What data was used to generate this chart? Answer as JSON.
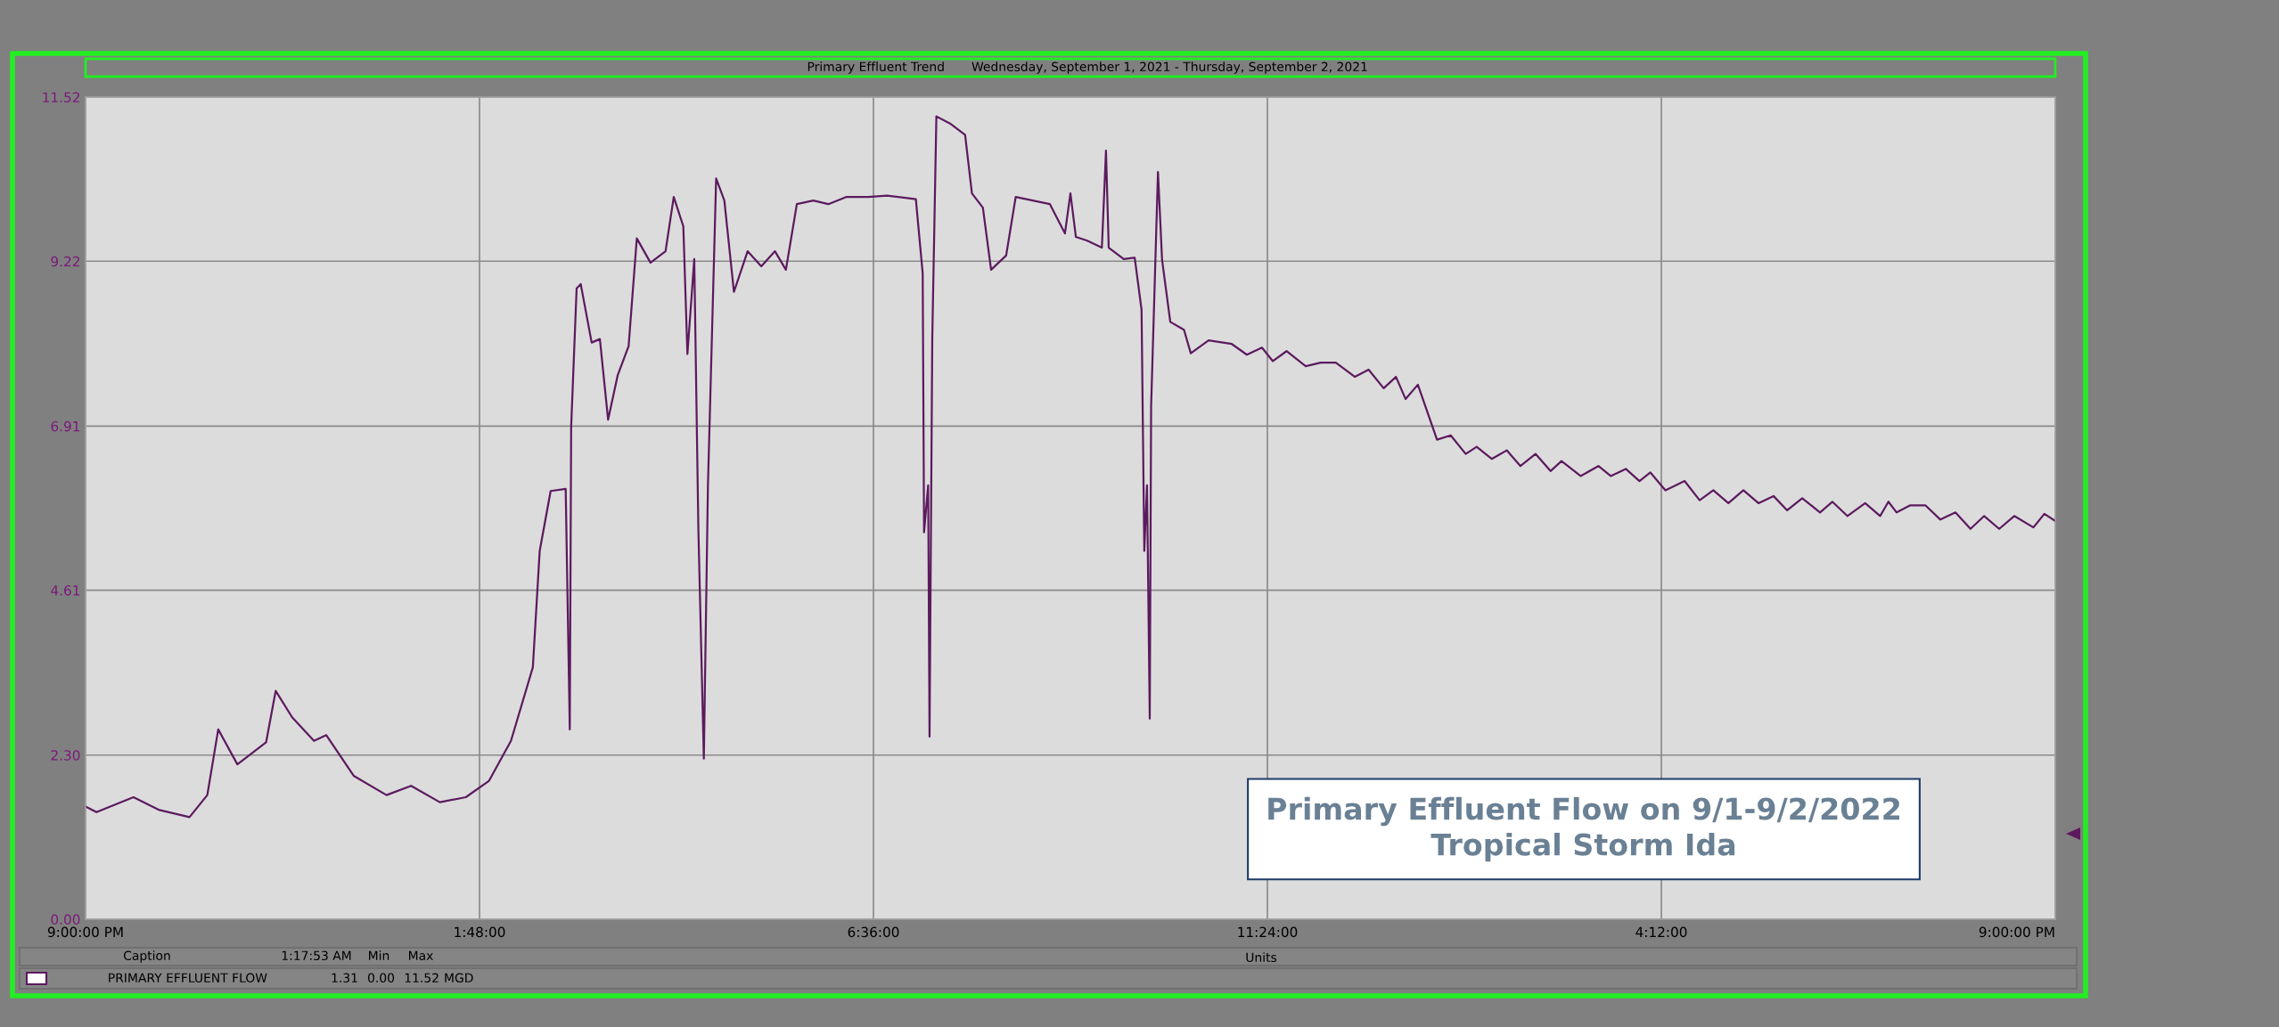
{
  "chart_data": {
    "type": "line",
    "title": "Primary Effluent Trend",
    "subtitle": "Wednesday, September 1, 2021 - Thursday, September 2, 2021",
    "xlim": [
      "2021-09-01T21:00",
      "2021-09-02T21:00"
    ],
    "xticks": [
      {
        "value": "2021-09-01T21:00",
        "label": "9:00:00 PM"
      },
      {
        "value": "2021-09-02T01:48",
        "label": "1:48:00"
      },
      {
        "value": "2021-09-02T06:36",
        "label": "6:36:00"
      },
      {
        "value": "2021-09-02T11:24",
        "label": "11:24:00"
      },
      {
        "value": "2021-09-02T16:12",
        "label": "4:12:00"
      },
      {
        "value": "2021-09-02T21:00",
        "label": "9:00:00 PM"
      }
    ],
    "ylim": [
      0,
      11.52
    ],
    "yticks": [
      {
        "value": 0,
        "label": "0.00"
      },
      {
        "value": 2.3,
        "label": "2.30"
      },
      {
        "value": 4.61,
        "label": "4.61"
      },
      {
        "value": 6.91,
        "label": "6.91"
      },
      {
        "value": 9.22,
        "label": "9.22"
      },
      {
        "value": 11.52,
        "label": "11.52"
      }
    ],
    "grid": true,
    "legend": false,
    "series": [
      {
        "name": "PRIMARY EFFLUENT FLOW",
        "color": "#5c1a5e",
        "x": [
          "2021-09-01T21:00",
          "2021-09-01T21:08",
          "2021-09-01T21:35",
          "2021-09-01T21:54",
          "2021-09-01T22:16",
          "2021-09-01T22:29",
          "2021-09-01T22:37",
          "2021-09-01T22:51",
          "2021-09-01T23:12",
          "2021-09-01T23:19",
          "2021-09-01T23:31",
          "2021-09-01T23:47",
          "2021-09-01T23:56",
          "2021-09-02T00:16",
          "2021-09-02T00:40",
          "2021-09-02T00:58",
          "2021-09-02T01:19",
          "2021-09-02T01:38",
          "2021-09-02T01:55",
          "2021-09-02T02:11",
          "2021-09-02T02:27",
          "2021-09-02T02:32",
          "2021-09-02T02:40",
          "2021-09-02T02:51",
          "2021-09-02T02:54",
          "2021-09-02T02:55",
          "2021-09-02T02:59",
          "2021-09-02T03:02",
          "2021-09-02T03:10",
          "2021-09-02T03:16",
          "2021-09-02T03:22",
          "2021-09-02T03:29",
          "2021-09-02T03:37",
          "2021-09-02T03:43",
          "2021-09-02T03:53",
          "2021-09-02T04:04",
          "2021-09-02T04:10",
          "2021-09-02T04:17",
          "2021-09-02T04:20",
          "2021-09-02T04:25",
          "2021-09-02T04:28",
          "2021-09-02T04:32",
          "2021-09-02T04:35",
          "2021-09-02T04:41",
          "2021-09-02T04:47",
          "2021-09-02T04:54",
          "2021-09-02T05:04",
          "2021-09-02T05:14",
          "2021-09-02T05:24",
          "2021-09-02T05:32",
          "2021-09-02T05:40",
          "2021-09-02T05:52",
          "2021-09-02T06:03",
          "2021-09-02T06:16",
          "2021-09-02T06:32",
          "2021-09-02T06:46",
          "2021-09-02T07:07",
          "2021-09-02T07:12",
          "2021-09-02T07:13",
          "2021-09-02T07:16",
          "2021-09-02T07:17",
          "2021-09-02T07:19",
          "2021-09-02T07:22",
          "2021-09-02T07:32",
          "2021-09-02T07:43",
          "2021-09-02T07:48",
          "2021-09-02T07:56",
          "2021-09-02T08:02",
          "2021-09-02T08:13",
          "2021-09-02T08:20",
          "2021-09-02T08:45",
          "2021-09-02T08:56",
          "2021-09-02T09:00",
          "2021-09-02T09:04",
          "2021-09-02T09:12",
          "2021-09-02T09:23",
          "2021-09-02T09:26",
          "2021-09-02T09:28",
          "2021-09-02T09:39",
          "2021-09-02T09:47",
          "2021-09-02T09:52",
          "2021-09-02T09:54",
          "2021-09-02T09:56",
          "2021-09-02T09:58",
          "2021-09-02T09:59",
          "2021-09-02T10:04",
          "2021-09-02T10:07",
          "2021-09-02T10:13",
          "2021-09-02T10:23",
          "2021-09-02T10:28",
          "2021-09-02T10:41",
          "2021-09-02T10:58",
          "2021-09-02T11:09",
          "2021-09-02T11:20",
          "2021-09-02T11:28",
          "2021-09-02T11:38",
          "2021-09-02T11:52",
          "2021-09-02T12:03",
          "2021-09-02T12:14",
          "2021-09-02T12:28",
          "2021-09-02T12:38",
          "2021-09-02T12:49",
          "2021-09-02T12:58",
          "2021-09-02T13:05",
          "2021-09-02T13:14",
          "2021-09-02T13:28",
          "2021-09-02T13:38",
          "2021-09-02T13:49",
          "2021-09-02T13:57",
          "2021-09-02T14:08",
          "2021-09-02T14:19",
          "2021-09-02T14:29",
          "2021-09-02T14:40",
          "2021-09-02T14:51",
          "2021-09-02T14:59",
          "2021-09-02T15:13",
          "2021-09-02T15:26",
          "2021-09-02T15:35",
          "2021-09-02T15:46",
          "2021-09-02T15:56",
          "2021-09-02T16:04",
          "2021-09-02T16:15",
          "2021-09-02T16:29",
          "2021-09-02T16:40",
          "2021-09-02T16:50",
          "2021-09-02T17:01",
          "2021-09-02T17:12",
          "2021-09-02T17:23",
          "2021-09-02T17:34",
          "2021-09-02T17:44",
          "2021-09-02T17:55",
          "2021-09-02T18:08",
          "2021-09-02T18:17",
          "2021-09-02T18:28",
          "2021-09-02T18:41",
          "2021-09-02T18:52",
          "2021-09-02T18:58",
          "2021-09-02T19:04",
          "2021-09-02T19:14",
          "2021-09-02T19:25",
          "2021-09-02T19:36",
          "2021-09-02T19:47",
          "2021-09-02T19:58",
          "2021-09-02T20:08",
          "2021-09-02T20:19",
          "2021-09-02T20:30",
          "2021-09-02T20:44",
          "2021-09-02T20:52",
          "2021-09-02T21:00"
        ],
        "values": [
          1.58,
          1.5,
          1.71,
          1.53,
          1.43,
          1.74,
          2.66,
          2.17,
          2.48,
          3.2,
          2.83,
          2.5,
          2.58,
          2.01,
          1.74,
          1.87,
          1.64,
          1.71,
          1.94,
          2.5,
          3.53,
          5.16,
          6.0,
          6.03,
          2.66,
          6.9,
          8.84,
          8.9,
          8.08,
          8.13,
          7.0,
          7.62,
          8.03,
          9.54,
          9.2,
          9.36,
          10.12,
          9.71,
          7.92,
          9.25,
          5.47,
          2.25,
          6.08,
          10.38,
          10.07,
          8.79,
          9.36,
          9.15,
          9.36,
          9.1,
          10.02,
          10.07,
          10.02,
          10.12,
          10.12,
          10.14,
          10.09,
          9.05,
          5.42,
          6.08,
          2.56,
          8.13,
          11.25,
          11.15,
          10.99,
          10.17,
          9.97,
          9.1,
          9.3,
          10.12,
          10.02,
          9.61,
          10.17,
          9.56,
          9.51,
          9.41,
          10.77,
          9.41,
          9.25,
          9.27,
          8.54,
          5.16,
          6.08,
          2.81,
          7.19,
          10.47,
          9.24,
          8.37,
          8.26,
          7.93,
          8.11,
          8.06,
          7.91,
          8.01,
          7.82,
          7.96,
          7.75,
          7.8,
          7.8,
          7.6,
          7.7,
          7.44,
          7.6,
          7.29,
          7.49,
          6.72,
          6.78,
          6.52,
          6.62,
          6.45,
          6.57,
          6.35,
          6.52,
          6.28,
          6.42,
          6.21,
          6.35,
          6.21,
          6.31,
          6.14,
          6.26,
          6.01,
          6.14,
          5.87,
          6.01,
          5.83,
          6.01,
          5.83,
          5.93,
          5.73,
          5.9,
          5.7,
          5.85,
          5.65,
          5.83,
          5.65,
          5.85,
          5.7,
          5.8,
          5.8,
          5.6,
          5.7,
          5.47,
          5.65,
          5.47,
          5.65,
          5.49,
          5.68,
          5.58
        ]
      }
    ],
    "annotations": [
      "Primary Effluent Flow on 9/1-9/2/2022\nTropical Storm Ida",
      "Caption",
      "1:17:53 AM",
      "Min",
      "Max",
      "Units",
      "1.31",
      "0.00",
      "11.52",
      "MGD"
    ]
  }
}
